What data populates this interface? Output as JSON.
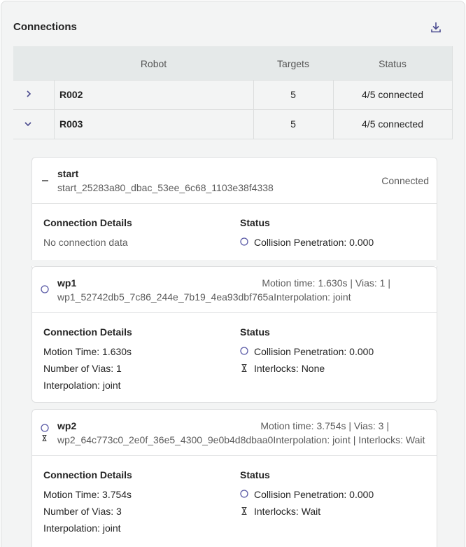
{
  "header": {
    "title": "Connections"
  },
  "table": {
    "columns": [
      "Robot",
      "Targets",
      "Status"
    ],
    "rows": [
      [
        "R002",
        5,
        "4/5 connected"
      ],
      [
        "R003",
        5,
        "4/5 connected"
      ]
    ]
  },
  "targets": [
    {
      "name": "start",
      "id": "start_25283a80_dbac_53ee_6c68_1103e38f4338",
      "summary": "Connected",
      "details_heading": "Connection Details",
      "details": [
        "No connection data"
      ],
      "status_heading": "Status",
      "status": [
        "Collision Penetration: 0.000"
      ]
    },
    {
      "name": "wp1",
      "id": "wp1_52742db5_7c86_244e_7b19_4ea93dbf765a",
      "summary": "Motion time: 1.630s | Vias: 1 |",
      "summary_continued": "Interpolation: joint",
      "details_heading": "Connection Details",
      "details": [
        "Motion Time: 1.630s",
        "Number of Vias: 1",
        "Interpolation: joint"
      ],
      "status_heading": "Status",
      "status": [
        "Collision Penetration: 0.000",
        "Interlocks: None"
      ]
    },
    {
      "name": "wp2",
      "id": "wp2_64c773c0_2e0f_36e5_4300_9e0b4d8dbaa0",
      "summary": "Motion time: 3.754s | Vias: 3 |",
      "summary_continued": "Interpolation: joint | Interlocks: Wait",
      "details_heading": "Connection Details",
      "details": [
        "Motion Time: 3.754s",
        "Number of Vias: 3",
        "Interpolation: joint"
      ],
      "status_heading": "Status",
      "status": [
        "Collision Penetration: 0.000",
        "Interlocks: Wait"
      ]
    }
  ]
}
